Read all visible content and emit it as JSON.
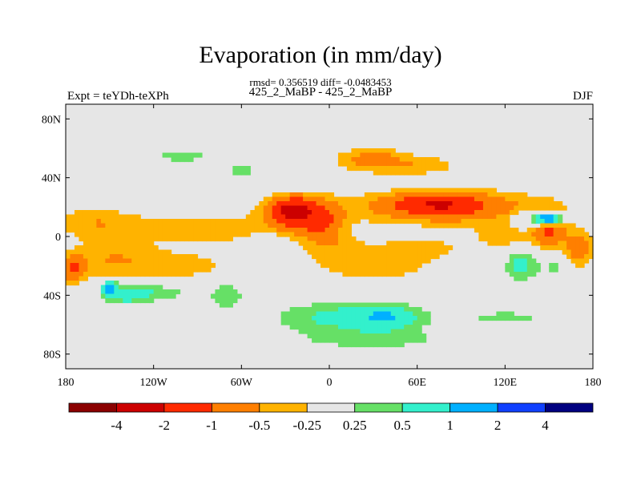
{
  "chart_data": {
    "type": "heatmap",
    "title": "Evaporation (in mm/day)",
    "stats_line": "rmsd= 0.356519 diff= -0.0483453",
    "subtitle": "425_2_MaBP - 425_2_MaBP",
    "left_label": "Expt = teYDh-teXPh",
    "right_label": "DJF",
    "xlim": [
      -180,
      180
    ],
    "ylim": [
      -90,
      90
    ],
    "x_ticks": [
      {
        "value": -180,
        "label": "180"
      },
      {
        "value": -120,
        "label": "120W"
      },
      {
        "value": -60,
        "label": "60W"
      },
      {
        "value": 0,
        "label": "0"
      },
      {
        "value": 60,
        "label": "60E"
      },
      {
        "value": 120,
        "label": "120E"
      },
      {
        "value": 180,
        "label": "180"
      }
    ],
    "y_ticks": [
      {
        "value": 80,
        "label": "80N"
      },
      {
        "value": 40,
        "label": "40N"
      },
      {
        "value": 0,
        "label": "0"
      },
      {
        "value": -40,
        "label": "40S"
      },
      {
        "value": -80,
        "label": "80S"
      }
    ],
    "contour_levels": [
      -4,
      -2,
      -1,
      -0.5,
      -0.25,
      0.25,
      0.5,
      1,
      2,
      4
    ],
    "colorbar_colors": [
      "#8b0000",
      "#cc0000",
      "#ff2a00",
      "#ff7f00",
      "#ffb300",
      "#e6e6e6",
      "#66e066",
      "#33f0cc",
      "#00b0ff",
      "#1040ff",
      "#000080"
    ],
    "colorbar_labels": [
      "-4",
      "-2",
      "-1",
      "-0.5",
      "-0.25",
      "0.25",
      "0.5",
      "1",
      "2",
      "4"
    ],
    "anomaly_centers": [
      {
        "lon": -80,
        "lat": 5,
        "ax": 55,
        "ay": 11,
        "v": -0.4
      },
      {
        "lon": -160,
        "lat": 10,
        "ax": 30,
        "ay": 10,
        "v": -0.45
      },
      {
        "lon": -150,
        "lat": -15,
        "ax": 32,
        "ay": 14,
        "v": -0.45
      },
      {
        "lon": -100,
        "lat": -20,
        "ax": 40,
        "ay": 10,
        "v": -0.35
      },
      {
        "lon": -20,
        "lat": 15,
        "ax": 22,
        "ay": 12,
        "v": -1.2
      },
      {
        "lon": -25,
        "lat": 18,
        "ax": 12,
        "ay": 7,
        "v": -1.6
      },
      {
        "lon": -5,
        "lat": 10,
        "ax": 12,
        "ay": 10,
        "v": -0.6
      },
      {
        "lon": 0,
        "lat": -5,
        "ax": 22,
        "ay": 10,
        "v": -0.4
      },
      {
        "lon": 30,
        "lat": -20,
        "ax": 40,
        "ay": 10,
        "v": -0.45
      },
      {
        "lon": 60,
        "lat": -8,
        "ax": 30,
        "ay": 7,
        "v": -0.4
      },
      {
        "lon": 80,
        "lat": 20,
        "ax": 65,
        "ay": 11,
        "v": -0.9
      },
      {
        "lon": 75,
        "lat": 22,
        "ax": 25,
        "ay": 7,
        "v": -1.3
      },
      {
        "lon": 120,
        "lat": 0,
        "ax": 25,
        "ay": 9,
        "v": -0.35
      },
      {
        "lon": 150,
        "lat": 5,
        "ax": 10,
        "ay": 12,
        "v": -1.1
      },
      {
        "lon": 170,
        "lat": -10,
        "ax": 10,
        "ay": 14,
        "v": -0.9
      },
      {
        "lon": -175,
        "lat": -22,
        "ax": 8,
        "ay": 8,
        "v": -1.0
      },
      {
        "lon": 30,
        "lat": 52,
        "ax": 25,
        "ay": 8,
        "v": -0.7
      },
      {
        "lon": 70,
        "lat": 45,
        "ax": 22,
        "ay": 8,
        "v": -0.7
      },
      {
        "lon": 70,
        "lat": 40,
        "ax": 15,
        "ay": 8,
        "v": 0.5
      },
      {
        "lon": 100,
        "lat": 45,
        "ax": 25,
        "ay": 6,
        "v": 0.3
      },
      {
        "lon": -100,
        "lat": 55,
        "ax": 30,
        "ay": 7,
        "v": 0.3
      },
      {
        "lon": -60,
        "lat": 45,
        "ax": 12,
        "ay": 6,
        "v": 0.35
      },
      {
        "lon": -40,
        "lat": -10,
        "ax": 18,
        "ay": 14,
        "v": 0.3
      },
      {
        "lon": -120,
        "lat": -38,
        "ax": 25,
        "ay": 6,
        "v": 0.45
      },
      {
        "lon": -140,
        "lat": -40,
        "ax": 15,
        "ay": 6,
        "v": 0.6
      },
      {
        "lon": -70,
        "lat": -40,
        "ax": 15,
        "ay": 12,
        "v": 0.35
      },
      {
        "lon": 10,
        "lat": -55,
        "ax": 45,
        "ay": 10,
        "v": 0.65
      },
      {
        "lon": 40,
        "lat": -55,
        "ax": 20,
        "ay": 8,
        "v": 0.7
      },
      {
        "lon": 30,
        "lat": -70,
        "ax": 55,
        "ay": 7,
        "v": 0.35
      },
      {
        "lon": 120,
        "lat": -55,
        "ax": 40,
        "ay": 6,
        "v": 0.3
      },
      {
        "lon": 130,
        "lat": -20,
        "ax": 10,
        "ay": 10,
        "v": 0.6
      },
      {
        "lon": 160,
        "lat": -20,
        "ax": 20,
        "ay": 10,
        "v": 0.35
      },
      {
        "lon": 150,
        "lat": 12,
        "ax": 8,
        "ay": 4,
        "v": 2.2
      },
      {
        "lon": 140,
        "lat": 12,
        "ax": 15,
        "ay": 6,
        "v": 0.6
      },
      {
        "lon": -150,
        "lat": -35,
        "ax": 5,
        "ay": 4,
        "v": 1.4
      }
    ]
  }
}
